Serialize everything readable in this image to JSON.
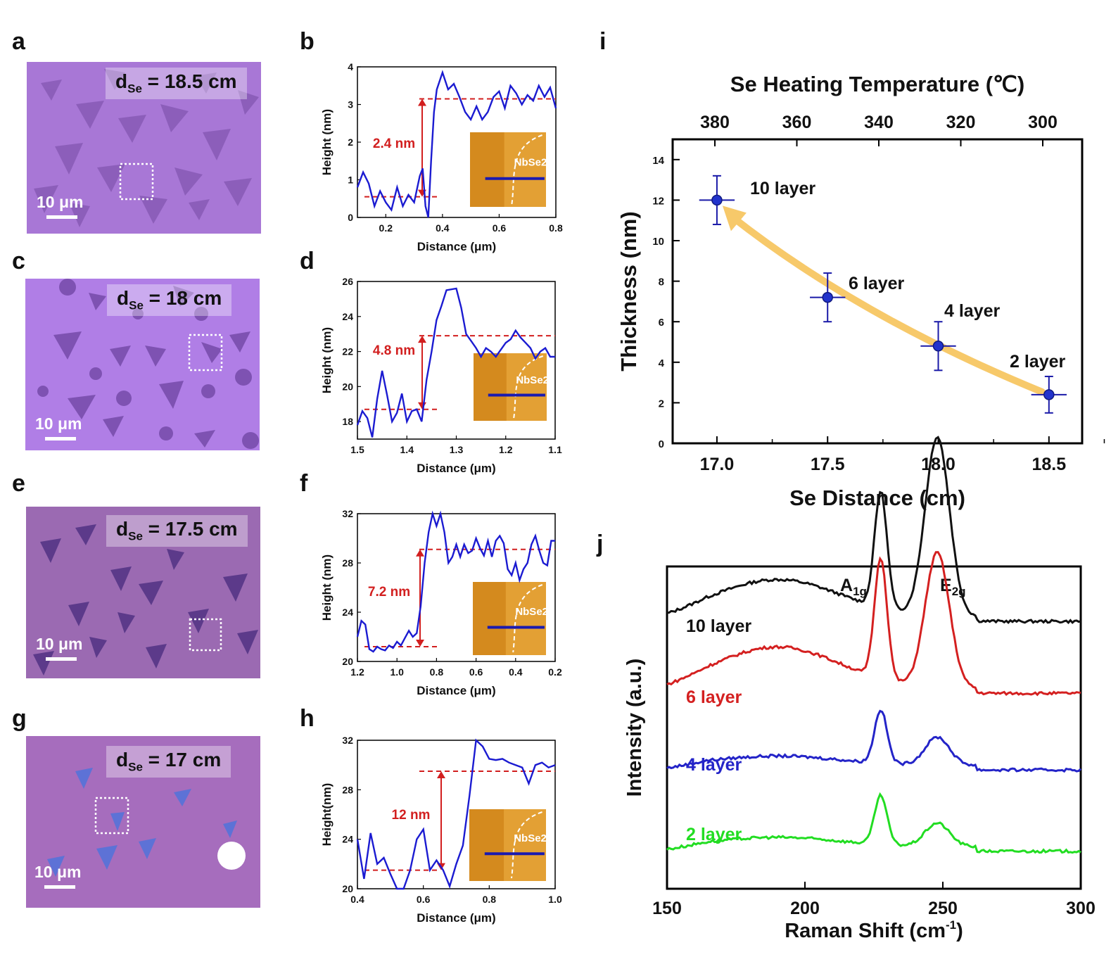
{
  "figure": {
    "panel_labels": [
      "a",
      "b",
      "c",
      "d",
      "e",
      "f",
      "g",
      "h",
      "i",
      "j"
    ],
    "scale_bar_label": "10 μm",
    "micrographs": [
      {
        "id": "a",
        "dse_prefix": "d",
        "dse_sub": "Se",
        "dse_value": " = 18.5 cm"
      },
      {
        "id": "c",
        "dse_prefix": "d",
        "dse_sub": "Se",
        "dse_value": " = 18 cm"
      },
      {
        "id": "e",
        "dse_prefix": "d",
        "dse_sub": "Se",
        "dse_value": " = 17.5 cm"
      },
      {
        "id": "g",
        "dse_prefix": "d",
        "dse_sub": "Se",
        "dse_value": " = 17 cm"
      }
    ]
  },
  "chart_data": [
    {
      "id": "b",
      "type": "line",
      "xlabel": "Distance (μm)",
      "ylabel": "Height (nm)",
      "xlim": [
        0.1,
        0.8
      ],
      "ylim": [
        0,
        4
      ],
      "xticks": [
        "0.2",
        "0.4",
        "0.6",
        "0.8"
      ],
      "yticks": [
        "0",
        "1",
        "2",
        "3",
        "4"
      ],
      "step_label": "2.4 nm",
      "inset_label": "NbSe2",
      "lower_level": 0.55,
      "upper_level": 3.15,
      "x": [
        0.1,
        0.12,
        0.14,
        0.16,
        0.18,
        0.2,
        0.22,
        0.24,
        0.26,
        0.28,
        0.3,
        0.32,
        0.33,
        0.34,
        0.35,
        0.36,
        0.37,
        0.38,
        0.4,
        0.42,
        0.44,
        0.46,
        0.48,
        0.5,
        0.52,
        0.54,
        0.56,
        0.58,
        0.6,
        0.62,
        0.64,
        0.66,
        0.68,
        0.7,
        0.72,
        0.74,
        0.76,
        0.78,
        0.8
      ],
      "y": [
        0.8,
        1.2,
        0.9,
        0.3,
        0.7,
        0.4,
        0.2,
        0.8,
        0.3,
        0.6,
        0.4,
        1.1,
        1.3,
        0.3,
        0.0,
        1.5,
        2.8,
        3.4,
        3.85,
        3.4,
        3.55,
        3.2,
        2.8,
        2.6,
        2.95,
        2.6,
        2.8,
        3.2,
        3.35,
        2.9,
        3.5,
        3.3,
        3.0,
        3.25,
        3.1,
        3.5,
        3.2,
        3.45,
        2.9
      ]
    },
    {
      "id": "d",
      "type": "line",
      "xlabel": "Distance (μm)",
      "ylabel": "Height (nm)",
      "xlim": [
        1.5,
        1.1
      ],
      "ylim": [
        17,
        26
      ],
      "xticks": [
        "1.5",
        "1.4",
        "1.3",
        "1.2",
        "1.1"
      ],
      "yticks": [
        "18",
        "20",
        "22",
        "24",
        "26"
      ],
      "step_label": "4.8 nm",
      "inset_label": "NbSe2",
      "lower_level": 18.7,
      "upper_level": 22.9,
      "x": [
        1.5,
        1.49,
        1.48,
        1.47,
        1.46,
        1.45,
        1.44,
        1.43,
        1.42,
        1.41,
        1.4,
        1.39,
        1.38,
        1.37,
        1.36,
        1.35,
        1.34,
        1.33,
        1.32,
        1.3,
        1.29,
        1.28,
        1.27,
        1.26,
        1.25,
        1.24,
        1.23,
        1.22,
        1.21,
        1.2,
        1.19,
        1.18,
        1.17,
        1.16,
        1.15,
        1.14,
        1.13,
        1.12,
        1.11,
        1.1
      ],
      "y": [
        17.8,
        18.6,
        18.2,
        17.1,
        19.3,
        20.9,
        19.5,
        18.0,
        18.5,
        19.6,
        18.0,
        18.6,
        18.7,
        18.0,
        20.4,
        22.0,
        23.8,
        24.6,
        25.5,
        25.6,
        24.5,
        23.0,
        22.6,
        22.2,
        21.7,
        22.2,
        22.0,
        21.7,
        22.1,
        22.5,
        22.7,
        23.2,
        22.8,
        22.5,
        22.2,
        21.6,
        22.0,
        22.2,
        21.7,
        21.7
      ]
    },
    {
      "id": "f",
      "type": "line",
      "xlabel": "Distance (μm)",
      "ylabel": "Height (nm)",
      "xlim": [
        1.2,
        0.2
      ],
      "ylim": [
        20,
        32
      ],
      "xticks": [
        "1.2",
        "1.0",
        "0.8",
        "0.6",
        "0.4",
        "0.2"
      ],
      "yticks": [
        "20",
        "24",
        "28",
        "32"
      ],
      "step_label": "7.2 nm",
      "inset_label": "NbSe2",
      "lower_level": 21.2,
      "upper_level": 29.1,
      "x": [
        1.2,
        1.18,
        1.16,
        1.14,
        1.12,
        1.1,
        1.08,
        1.06,
        1.04,
        1.02,
        1.0,
        0.98,
        0.96,
        0.94,
        0.92,
        0.9,
        0.88,
        0.86,
        0.84,
        0.82,
        0.8,
        0.78,
        0.76,
        0.74,
        0.72,
        0.7,
        0.68,
        0.66,
        0.64,
        0.62,
        0.6,
        0.58,
        0.56,
        0.54,
        0.52,
        0.5,
        0.48,
        0.46,
        0.44,
        0.42,
        0.4,
        0.38,
        0.36,
        0.34,
        0.32,
        0.3,
        0.28,
        0.26,
        0.24,
        0.22,
        0.2
      ],
      "y": [
        22.0,
        23.3,
        23.0,
        21.0,
        20.8,
        21.2,
        21.0,
        20.9,
        21.3,
        21.1,
        21.6,
        21.3,
        21.9,
        22.5,
        22.0,
        22.3,
        24.5,
        28.0,
        30.5,
        32.0,
        31.0,
        32.2,
        30.5,
        28.0,
        28.5,
        29.5,
        28.5,
        29.5,
        28.8,
        29.0,
        30.0,
        29.2,
        28.6,
        29.8,
        28.5,
        29.8,
        30.2,
        29.6,
        27.5,
        27.0,
        28.0,
        26.6,
        27.5,
        28.0,
        29.5,
        30.2,
        29.0,
        28.0,
        27.8,
        29.8,
        29.8
      ]
    },
    {
      "id": "h",
      "type": "line",
      "xlabel": "Distance (μm)",
      "ylabel": "Height(nm)",
      "xlim": [
        0.4,
        1.0
      ],
      "ylim": [
        20,
        32
      ],
      "xticks": [
        "0.4",
        "0.6",
        "0.8",
        "1.0"
      ],
      "yticks": [
        "20",
        "24",
        "28",
        "32"
      ],
      "step_label": "12 nm",
      "inset_label": "NbSe2",
      "lower_level": 21.5,
      "upper_level": 29.5,
      "x": [
        0.4,
        0.42,
        0.44,
        0.46,
        0.48,
        0.5,
        0.52,
        0.54,
        0.56,
        0.58,
        0.6,
        0.62,
        0.64,
        0.66,
        0.68,
        0.7,
        0.72,
        0.74,
        0.76,
        0.78,
        0.8,
        0.82,
        0.84,
        0.86,
        0.88,
        0.9,
        0.92,
        0.94,
        0.96,
        0.98,
        1.0
      ],
      "y": [
        24.0,
        20.8,
        24.5,
        22.0,
        22.5,
        21.2,
        19.8,
        20.0,
        21.5,
        24.0,
        24.8,
        21.5,
        22.3,
        21.5,
        20.2,
        22.0,
        23.5,
        27.5,
        32.0,
        31.5,
        30.5,
        30.4,
        30.5,
        30.2,
        30.0,
        29.8,
        28.5,
        30.0,
        30.2,
        29.8,
        30.0
      ]
    },
    {
      "id": "i",
      "type": "scatter",
      "title": "Se Heating Temperature (℃)",
      "xlabel": "Se Distance (cm)",
      "ylabel": "Thickness (nm)",
      "xlim": [
        16.8,
        18.65
      ],
      "ylim": [
        0,
        15
      ],
      "xticks": [
        "17.0",
        "17.5",
        "18.0",
        "18.5"
      ],
      "top_xticks": [
        "380",
        "360",
        "340",
        "320",
        "300"
      ],
      "yticks": [
        "0",
        "2",
        "4",
        "6",
        "8",
        "10",
        "12",
        "14"
      ],
      "x": [
        17.0,
        17.5,
        18.0,
        18.5
      ],
      "y": [
        12.0,
        7.2,
        4.8,
        2.4
      ],
      "yerr": [
        1.2,
        1.2,
        1.2,
        0.9
      ],
      "xerr": [
        0.08,
        0.08,
        0.08,
        0.08
      ],
      "point_labels": [
        "10 layer",
        "6 layer",
        "4 layer",
        "2 layer"
      ]
    },
    {
      "id": "j",
      "type": "line",
      "xlabel_main": "Raman Shift (cm",
      "xlabel_sup": "-1",
      "xlabel_end": ")",
      "ylabel": "Intensity (a.u.)",
      "xlim": [
        150,
        300
      ],
      "xticks": [
        "150",
        "200",
        "250",
        "300"
      ],
      "peak_labels": [
        {
          "base": "A",
          "sub": "1g"
        },
        {
          "base": "E",
          "sub": "2g"
        }
      ],
      "series": [
        {
          "name": "10 layer",
          "color": "#111111",
          "offset": 0.96,
          "bump_height": 0.16,
          "peak1": 0.5,
          "peak2": 0.77,
          "end_level": 0.04
        },
        {
          "name": "6 layer",
          "color": "#d42020",
          "offset": 0.66,
          "bump_height": 0.18,
          "peak1": 0.52,
          "peak2": 0.58,
          "end_level": 0.03
        },
        {
          "name": "4 layer",
          "color": "#2424c8",
          "offset": 0.34,
          "bump_height": 0.04,
          "peak1": 0.23,
          "peak2": 0.12,
          "end_level": 0.02
        },
        {
          "name": "2 layer",
          "color": "#22dd22",
          "offset": 0.0,
          "bump_height": 0.04,
          "peak1": 0.21,
          "peak2": 0.1,
          "end_level": 0.01
        }
      ]
    }
  ]
}
